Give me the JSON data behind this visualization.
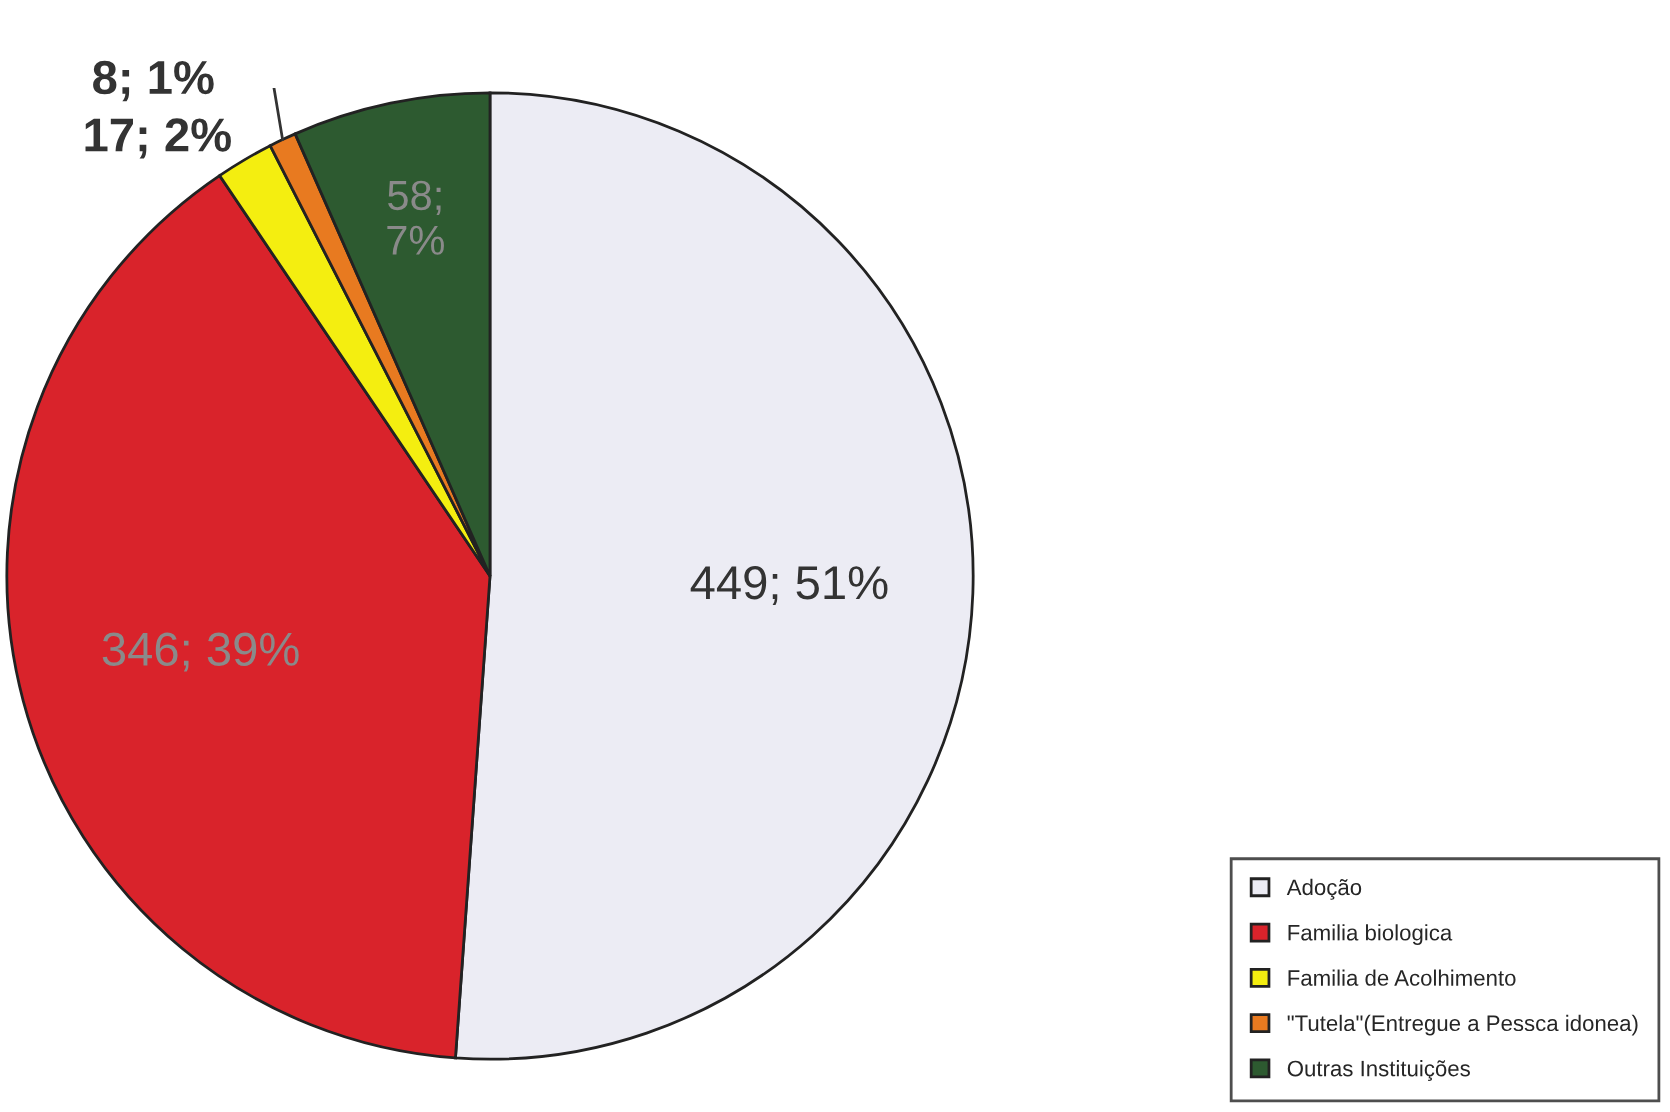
{
  "chart_data": {
    "type": "pie",
    "categories": [
      "Adoção",
      "Familia biologica",
      "Familia de Acolhimento",
      "\"Tutela\"(Entregue a Pessca idonea)",
      "Outras Instituições"
    ],
    "values": [
      449,
      346,
      17,
      8,
      58
    ],
    "colors": [
      "#ececf4",
      "#d9232b",
      "#f4ee10",
      "#e87a20",
      "#2d5a30"
    ],
    "value_labels": [
      "449; 51%",
      "346; 39%",
      "17; 2%",
      "8; 1%",
      "58; 7%"
    ],
    "legend": "bottom right"
  }
}
